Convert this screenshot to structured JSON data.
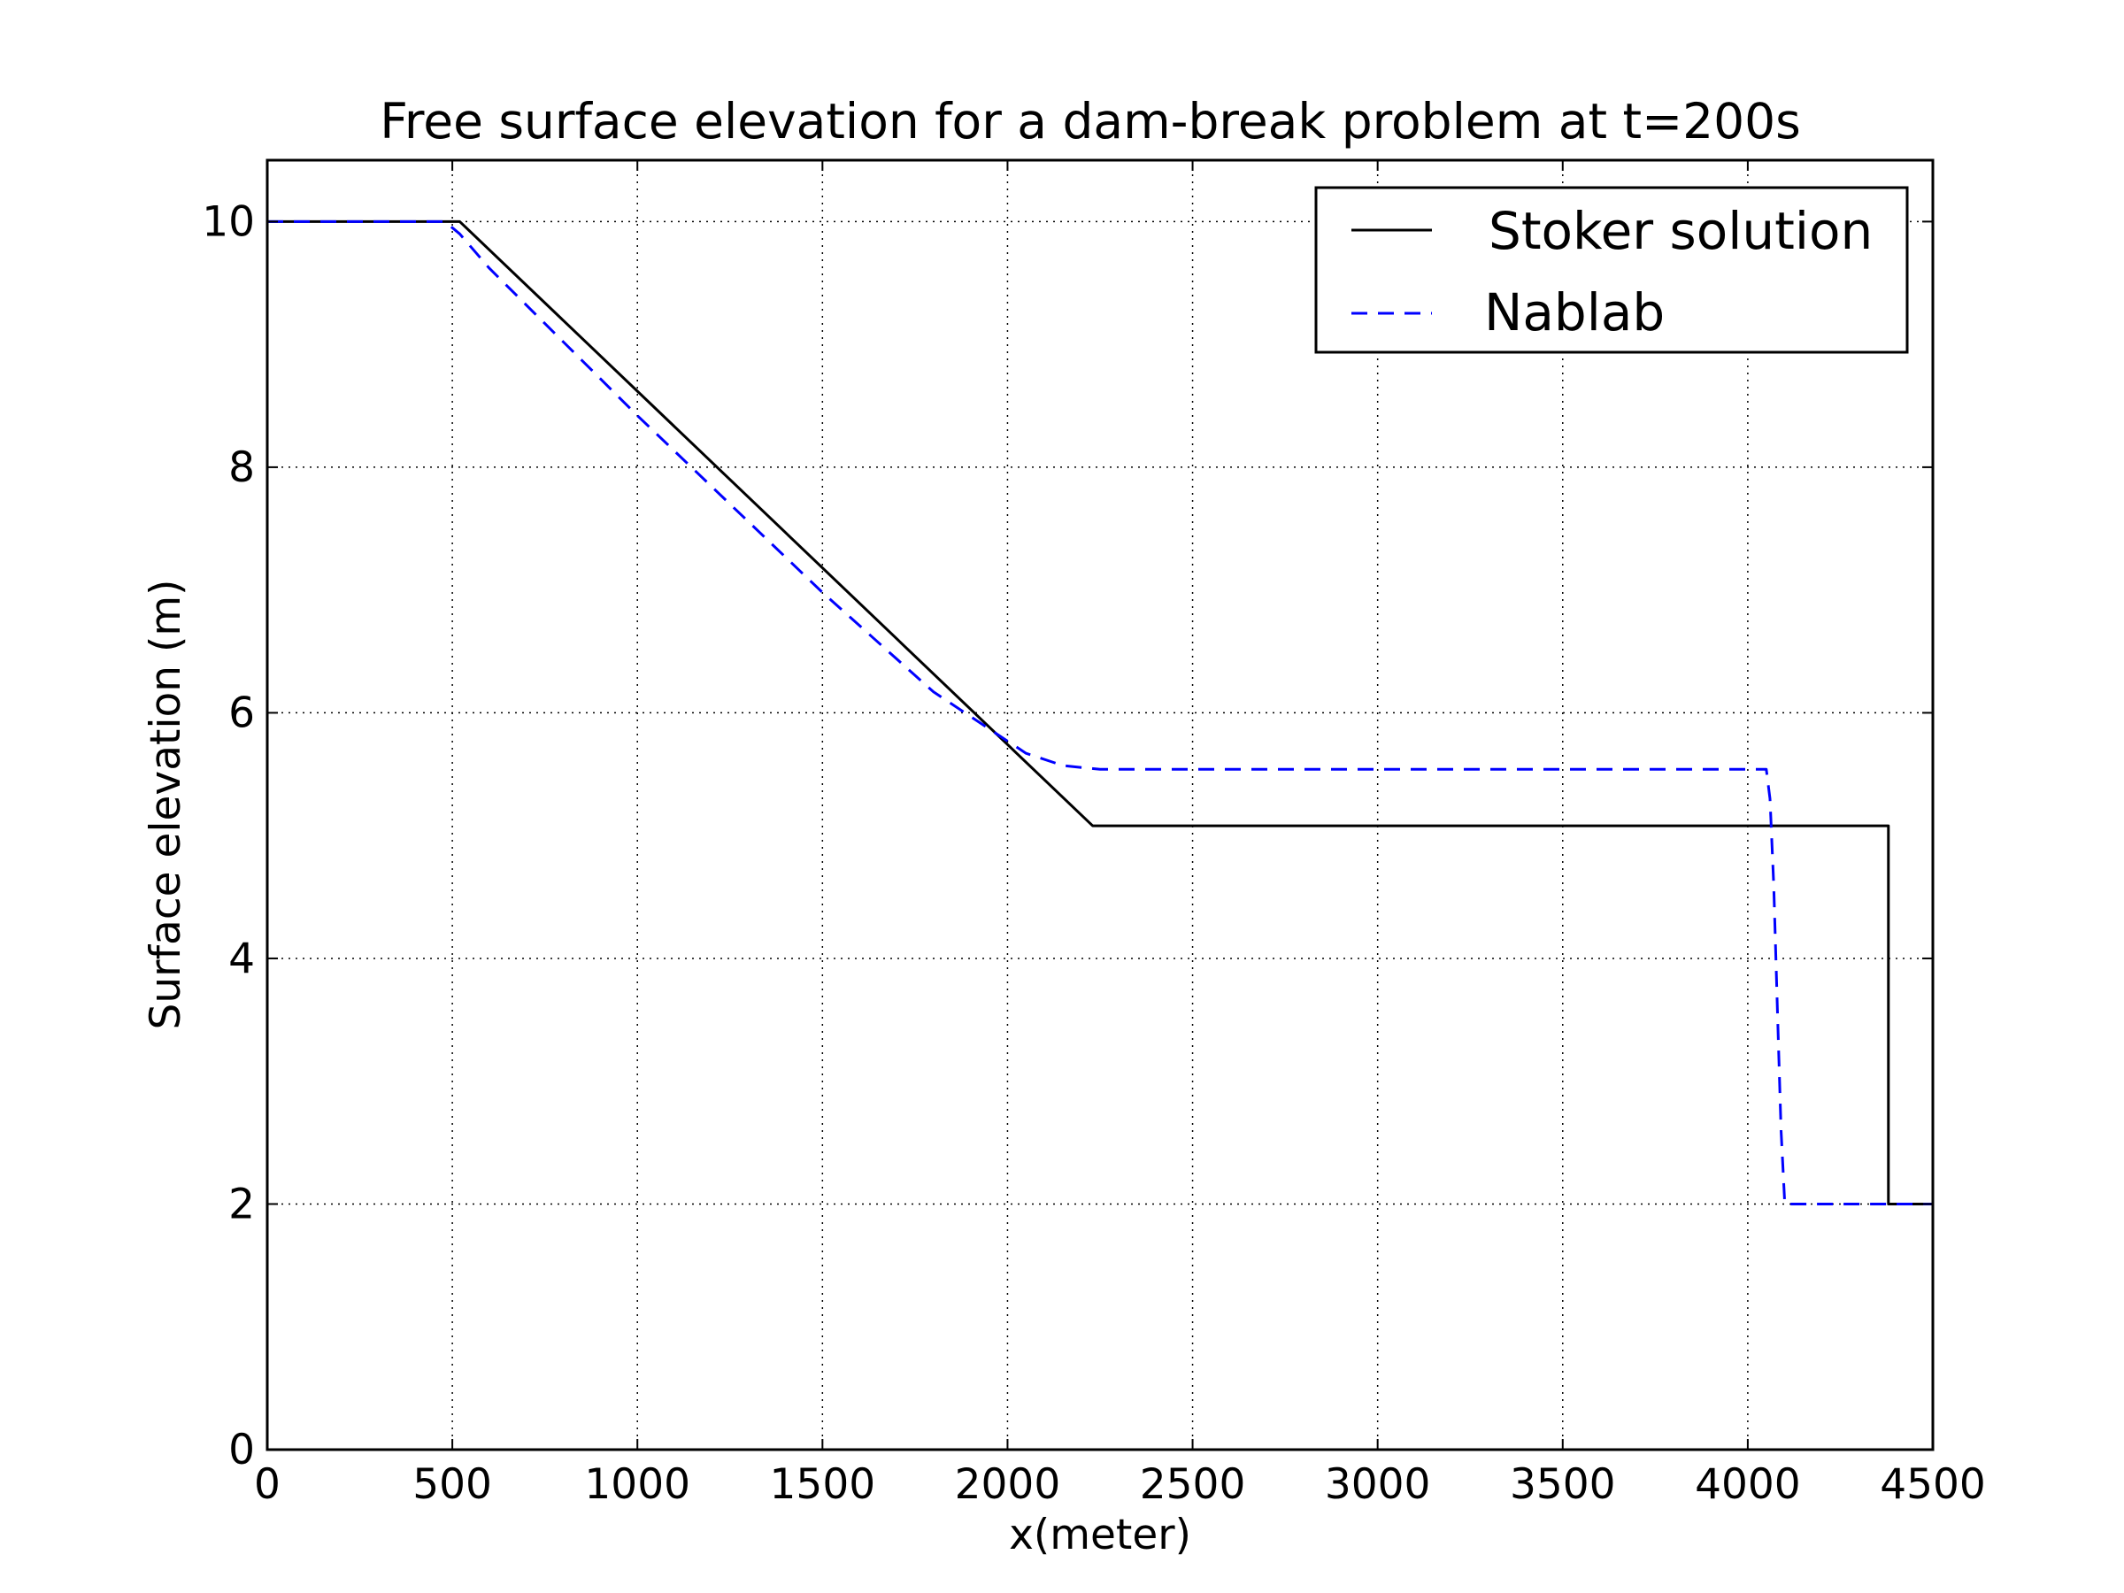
{
  "chart_data": {
    "type": "line",
    "title": "Free surface elevation for a dam-break problem at t=200s",
    "xlabel": "x(meter)",
    "ylabel": "Surface elevation (m)",
    "xlim": [
      0,
      4500
    ],
    "ylim": [
      0,
      10.5
    ],
    "x_ticks": [
      "0",
      "500",
      "1000",
      "1500",
      "2000",
      "2500",
      "3000",
      "3500",
      "4000",
      "4500"
    ],
    "y_ticks": [
      "0",
      "2",
      "4",
      "6",
      "8",
      "10"
    ],
    "grid": true,
    "legend_position": "top-right",
    "series": [
      {
        "name": "Stoker solution",
        "color": "#000000",
        "style": "solid",
        "x": [
          0,
          520,
          2230,
          4380,
          4380,
          4500
        ],
        "y": [
          10.0,
          10.0,
          5.08,
          5.08,
          2.0,
          2.0
        ]
      },
      {
        "name": "Nablab",
        "color": "#0000ff",
        "style": "dashed",
        "x": [
          0,
          480,
          520,
          600,
          1000,
          1500,
          1800,
          1950,
          2050,
          2150,
          2250,
          2400,
          3000,
          4050,
          4060,
          4070,
          4080,
          4090,
          4100,
          4200,
          4500
        ],
        "y": [
          10.0,
          10.0,
          9.9,
          9.62,
          8.42,
          6.98,
          6.17,
          5.87,
          5.67,
          5.57,
          5.54,
          5.54,
          5.54,
          5.54,
          5.3,
          4.6,
          3.6,
          2.6,
          2.0,
          2.0,
          2.0
        ]
      }
    ]
  }
}
